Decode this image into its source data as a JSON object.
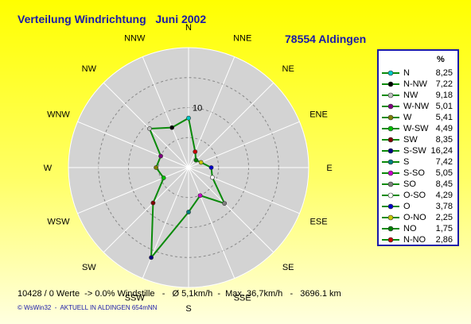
{
  "header": {
    "title": "Verteilung Windrichtung   Juni 2002",
    "station": "78554 Aldingen"
  },
  "chart_data": {
    "type": "radar",
    "unit": "%",
    "ring_label": "10",
    "rmax": 20,
    "ring_step": 5,
    "directions": [
      "N",
      "NNE",
      "NE",
      "ENE",
      "E",
      "ESE",
      "SE",
      "SSE",
      "S",
      "SSW",
      "SW",
      "WSW",
      "W",
      "WNW",
      "NW",
      "NNW"
    ],
    "values": [
      8.25,
      2.86,
      1.75,
      2.25,
      3.78,
      4.29,
      8.45,
      5.05,
      7.42,
      16.24,
      8.35,
      4.49,
      5.41,
      5.01,
      9.18,
      7.22
    ],
    "marker_colors": [
      "#00c8c8",
      "#c80000",
      "#008000",
      "#c8c800",
      "#0000c8",
      "#ffffff",
      "#808080",
      "#c800c8",
      "#008080",
      "#000080",
      "#800000",
      "#00c000",
      "#808000",
      "#800080",
      "#c0c0c0",
      "#000000"
    ],
    "line_color": "#0a8a0a"
  },
  "legend": {
    "unit": "%",
    "items": [
      {
        "name": "N",
        "value": "8,25",
        "color": "#00c8c8"
      },
      {
        "name": "N-NW",
        "value": "7,22",
        "color": "#000000"
      },
      {
        "name": "NW",
        "value": "9,18",
        "color": "#c0c0c0"
      },
      {
        "name": "W-NW",
        "value": "5,01",
        "color": "#800080"
      },
      {
        "name": "W",
        "value": "5,41",
        "color": "#808000"
      },
      {
        "name": "W-SW",
        "value": "4,49",
        "color": "#00c000"
      },
      {
        "name": "SW",
        "value": "8,35",
        "color": "#800000"
      },
      {
        "name": "S-SW",
        "value": "16,24",
        "color": "#000080"
      },
      {
        "name": "S",
        "value": "7,42",
        "color": "#008080"
      },
      {
        "name": "S-SO",
        "value": "5,05",
        "color": "#c800c8"
      },
      {
        "name": "SO",
        "value": "8,45",
        "color": "#808080"
      },
      {
        "name": "O-SO",
        "value": "4,29",
        "color": "#ffffff"
      },
      {
        "name": "O",
        "value": "3,78",
        "color": "#0000c8"
      },
      {
        "name": "O-NO",
        "value": "2,25",
        "color": "#c8c800"
      },
      {
        "name": "NO",
        "value": "1,75",
        "color": "#008000"
      },
      {
        "name": "N-NO",
        "value": "2,86",
        "color": "#c80000"
      }
    ]
  },
  "footer": {
    "stats": "10428 / 0 Werte  -> 0.0% Windstille   -   Ø 5,1km/h  -  Max. 36,7km/h   -   3696.1 km",
    "credit": "© WsWin32  -  AKTUELL IN ALDINGEN 654mNN"
  }
}
